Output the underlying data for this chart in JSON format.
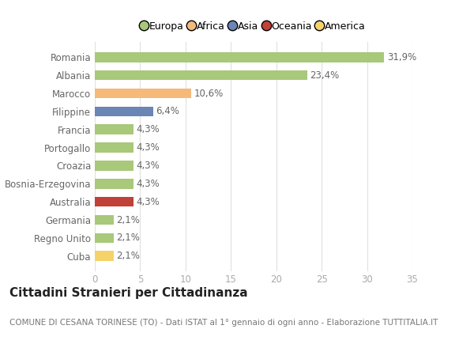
{
  "categories": [
    "Romania",
    "Albania",
    "Marocco",
    "Filippine",
    "Francia",
    "Portogallo",
    "Croazia",
    "Bosnia-Erzegovina",
    "Australia",
    "Germania",
    "Regno Unito",
    "Cuba"
  ],
  "values": [
    31.9,
    23.4,
    10.6,
    6.4,
    4.3,
    4.3,
    4.3,
    4.3,
    4.3,
    2.1,
    2.1,
    2.1
  ],
  "labels": [
    "31,9%",
    "23,4%",
    "10,6%",
    "6,4%",
    "4,3%",
    "4,3%",
    "4,3%",
    "4,3%",
    "4,3%",
    "2,1%",
    "2,1%",
    "2,1%"
  ],
  "bar_colors": [
    "#a8c87a",
    "#a8c87a",
    "#f5b97a",
    "#6b85b5",
    "#a8c87a",
    "#a8c87a",
    "#a8c87a",
    "#a8c87a",
    "#c0413a",
    "#a8c87a",
    "#a8c87a",
    "#f5d26a"
  ],
  "legend_labels": [
    "Europa",
    "Africa",
    "Asia",
    "Oceania",
    "America"
  ],
  "legend_colors": [
    "#a8c87a",
    "#f5b97a",
    "#6b85b5",
    "#c0413a",
    "#f5d26a"
  ],
  "title": "Cittadini Stranieri per Cittadinanza",
  "subtitle": "COMUNE DI CESANA TORINESE (TO) - Dati ISTAT al 1° gennaio di ogni anno - Elaborazione TUTTITALIA.IT",
  "xlim": [
    0,
    35
  ],
  "xticks": [
    0,
    5,
    10,
    15,
    20,
    25,
    30,
    35
  ],
  "background_color": "#ffffff",
  "grid_color": "#e0e0e0",
  "bar_height": 0.55,
  "label_fontsize": 8.5,
  "tick_fontsize": 8.5,
  "title_fontsize": 11,
  "subtitle_fontsize": 7.5
}
